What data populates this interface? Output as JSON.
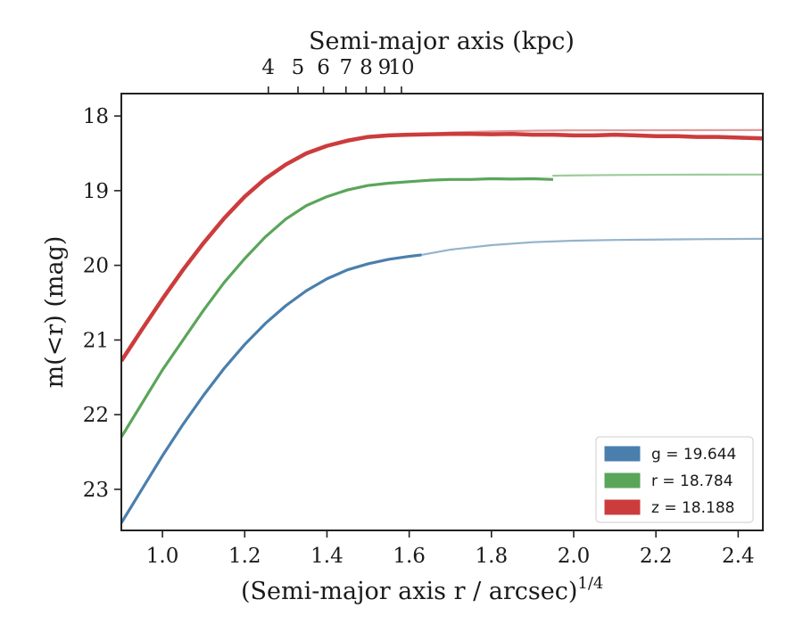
{
  "chart_data": {
    "type": "line",
    "xlabel": "(Semi-major axis r / arcsec)",
    "xlabel_exp": "1/4",
    "ylabel": "m(<r) (mag)",
    "top_xlabel": "Semi-major axis (kpc)",
    "xlim": [
      0.9,
      2.46
    ],
    "ylim": [
      23.55,
      17.7
    ],
    "y_inverted": true,
    "x_ticks": [
      1.0,
      1.2,
      1.4,
      1.6,
      1.8,
      2.0,
      2.2,
      2.4
    ],
    "x_tick_labels": [
      "1.0",
      "1.2",
      "1.4",
      "1.6",
      "1.8",
      "2.0",
      "2.2",
      "2.4"
    ],
    "y_ticks": [
      18,
      19,
      20,
      21,
      22,
      23
    ],
    "y_tick_labels": [
      "18",
      "19",
      "20",
      "21",
      "22",
      "23"
    ],
    "top_ticks_kpc": [
      4,
      5,
      6,
      7,
      8,
      9,
      10
    ],
    "top_tick_labels": [
      "4",
      "5",
      "6",
      "7",
      "8",
      "9",
      "10"
    ],
    "kpc_per_arcsec": 1.6,
    "grid": false,
    "legend_position": "lower-right",
    "series": [
      {
        "name": "g = 19.644",
        "band": "g",
        "total_mag": "19.644",
        "color": "#4a7fad",
        "model_color": "#93b3cc",
        "data": {
          "x": [
            0.9,
            0.95,
            1.0,
            1.05,
            1.1,
            1.15,
            1.2,
            1.25,
            1.3,
            1.35,
            1.4,
            1.45,
            1.5,
            1.55,
            1.6,
            1.63
          ],
          "y": [
            23.45,
            23.0,
            22.55,
            22.13,
            21.74,
            21.38,
            21.06,
            20.78,
            20.54,
            20.34,
            20.18,
            20.06,
            19.98,
            19.92,
            19.88,
            19.86
          ]
        },
        "model": {
          "x": [
            1.63,
            1.7,
            1.8,
            1.9,
            2.0,
            2.1,
            2.2,
            2.3,
            2.46
          ],
          "y": [
            19.86,
            19.79,
            19.73,
            19.69,
            19.67,
            19.66,
            19.655,
            19.65,
            19.645
          ]
        }
      },
      {
        "name": "r = 18.784",
        "band": "r",
        "total_mag": "18.784",
        "color": "#5aa55a",
        "model_color": "#9ccc9a",
        "data": {
          "x": [
            0.9,
            0.95,
            1.0,
            1.05,
            1.1,
            1.15,
            1.2,
            1.25,
            1.3,
            1.35,
            1.4,
            1.45,
            1.5,
            1.55,
            1.6,
            1.65,
            1.7,
            1.75,
            1.8,
            1.85,
            1.9,
            1.95
          ],
          "y": [
            22.3,
            21.85,
            21.4,
            21.0,
            20.6,
            20.23,
            19.91,
            19.62,
            19.38,
            19.2,
            19.08,
            18.99,
            18.93,
            18.9,
            18.88,
            18.86,
            18.85,
            18.85,
            18.84,
            18.845,
            18.84,
            18.85
          ]
        },
        "model": {
          "x": [
            1.95,
            2.0,
            2.1,
            2.2,
            2.3,
            2.46
          ],
          "y": [
            18.8,
            18.795,
            18.79,
            18.787,
            18.785,
            18.784
          ]
        }
      },
      {
        "name": "z = 18.188",
        "band": "z",
        "total_mag": "18.188",
        "color": "#cc3c3c",
        "model_color": "#e09a9a",
        "data": {
          "x": [
            0.9,
            0.95,
            1.0,
            1.05,
            1.1,
            1.15,
            1.2,
            1.25,
            1.3,
            1.35,
            1.4,
            1.45,
            1.5,
            1.55,
            1.6,
            1.65,
            1.7,
            1.75,
            1.8,
            1.85,
            1.9,
            1.95,
            2.0,
            2.05,
            2.1,
            2.15,
            2.2,
            2.25,
            2.3,
            2.35,
            2.4,
            2.46
          ],
          "y": [
            21.28,
            20.86,
            20.45,
            20.06,
            19.7,
            19.37,
            19.08,
            18.84,
            18.65,
            18.5,
            18.4,
            18.33,
            18.28,
            18.26,
            18.25,
            18.245,
            18.24,
            18.24,
            18.245,
            18.24,
            18.25,
            18.25,
            18.26,
            18.26,
            18.25,
            18.26,
            18.27,
            18.27,
            18.28,
            18.28,
            18.29,
            18.3
          ]
        },
        "model": {
          "x": [
            1.6,
            1.7,
            1.8,
            1.9,
            2.0,
            2.2,
            2.46
          ],
          "y": [
            18.25,
            18.22,
            18.205,
            18.197,
            18.192,
            18.19,
            18.188
          ]
        }
      }
    ]
  }
}
